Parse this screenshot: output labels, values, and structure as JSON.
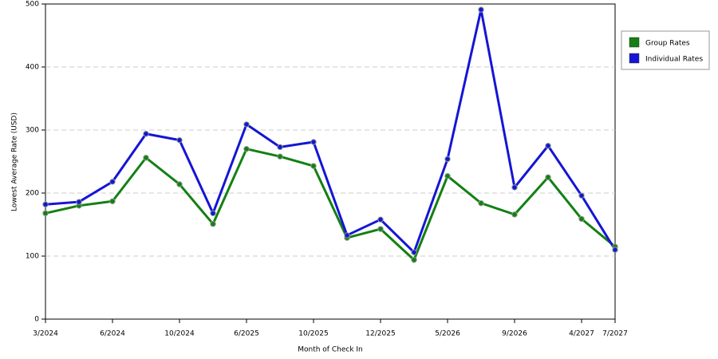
{
  "chart_data": {
    "type": "line",
    "x_label": "Month of Check In",
    "y_label": "Lowest Average Rate (USD)",
    "categories": [
      "3/2024",
      null,
      "6/2024",
      null,
      "10/2024",
      null,
      "6/2025",
      null,
      "10/2025",
      null,
      "12/2025",
      null,
      "5/2026",
      null,
      "9/2026",
      null,
      "4/2027",
      "7/2027"
    ],
    "series": [
      {
        "name": "Group Rates",
        "color": "#138013",
        "values": [
          168,
          180,
          187,
          256,
          214,
          151,
          270,
          258,
          243,
          129,
          143,
          94,
          227,
          184,
          166,
          225,
          159,
          115
        ]
      },
      {
        "name": "Individual Rates",
        "color": "#1515d5",
        "values": [
          182,
          186,
          218,
          294,
          284,
          168,
          309,
          273,
          281,
          133,
          158,
          106,
          254,
          491,
          209,
          275,
          196,
          110
        ]
      }
    ],
    "ylim": [
      0,
      500
    ],
    "yticks": [
      0,
      100,
      200,
      300,
      400,
      500
    ],
    "grid": true,
    "legend": "right"
  }
}
